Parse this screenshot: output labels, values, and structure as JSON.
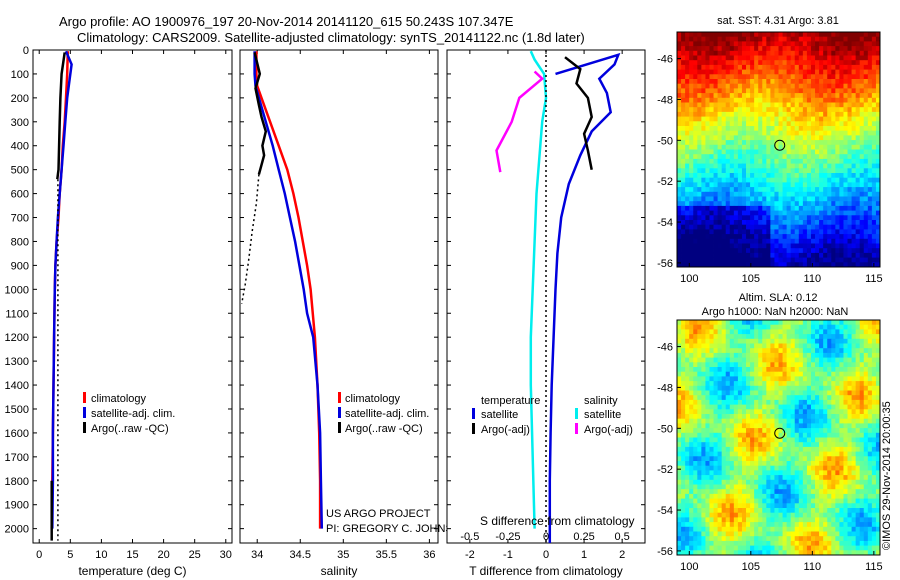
{
  "header": {
    "line1": "Argo profile: AO 1900976_197 20-Nov-2014 20141120_615 50.243S 107.347E",
    "line2": "Climatology: CARS2009. Satellite-adjusted climatology: synTS_20141122.nc (1.8d later)"
  },
  "colors": {
    "climatology": "#ff0000",
    "satellite": "#0000dd",
    "argo": "#000000",
    "satellite_s": "#00eeee",
    "argo_s": "#ff00ff"
  },
  "chart_data": [
    {
      "type": "line",
      "xlabel": "temperature (deg C)",
      "ylabel": "",
      "xlim": [
        -1,
        31
      ],
      "ylim": [
        2060,
        0
      ],
      "xticks": [
        0,
        5,
        10,
        15,
        20,
        25,
        30
      ],
      "yticks": [
        0,
        100,
        200,
        300,
        400,
        500,
        600,
        700,
        800,
        900,
        1000,
        1100,
        1200,
        1300,
        1400,
        1500,
        1600,
        1700,
        1800,
        1900,
        2000
      ],
      "legend": [
        "climatology",
        "satellite-adj. clim.",
        "Argo(..raw -QC)"
      ],
      "series": [
        {
          "name": "climatology",
          "color": "#ff0000",
          "x": [
            4.6,
            4.5,
            4.3,
            4.1,
            3.8,
            3.6,
            3.3,
            3.1,
            2.8,
            2.6,
            2.5,
            2.4,
            2.3,
            2.2,
            2.1,
            2.0
          ],
          "y": [
            5,
            100,
            200,
            300,
            400,
            500,
            600,
            700,
            800,
            900,
            1000,
            1200,
            1400,
            1600,
            1800,
            2000
          ]
        },
        {
          "name": "satellite-adj. clim.",
          "color": "#0000dd",
          "x": [
            4.3,
            5.2,
            4.9,
            4.5,
            4.2,
            3.9,
            3.6,
            3.3,
            3.0,
            2.8,
            2.6,
            2.5,
            2.4,
            2.3,
            2.2,
            2.2,
            2.1
          ],
          "y": [
            5,
            60,
            120,
            200,
            300,
            400,
            500,
            600,
            700,
            800,
            900,
            1000,
            1200,
            1400,
            1600,
            1800,
            2000
          ]
        },
        {
          "name": "Argo(..raw -QC)",
          "color": "#000000",
          "x": [
            4.1,
            3.6,
            3.4,
            3.3,
            3.2,
            3.1,
            3.0,
            2.9
          ],
          "y": [
            10,
            100,
            200,
            300,
            400,
            500,
            520,
            540
          ]
        },
        {
          "name": "",
          "color": "#000000",
          "dotted": true,
          "x": [
            3.0,
            3.0,
            3.0,
            3.0,
            3.0,
            3.0
          ],
          "y": [
            540,
            800,
            1200,
            1600,
            2000,
            2050
          ]
        },
        {
          "name": "",
          "color": "#000000",
          "x": [
            2.0,
            2.0
          ],
          "y": [
            1800,
            2050
          ]
        }
      ]
    },
    {
      "type": "line",
      "xlabel": "salinity",
      "xlim": [
        33.8,
        36.1
      ],
      "ylim": [
        2060,
        0
      ],
      "xticks": [
        34,
        34.5,
        35,
        35.5,
        36
      ],
      "legend": [
        "climatology",
        "satellite-adj. clim.",
        "Argo(..raw -QC)"
      ],
      "annotations": [
        "US ARGO PROJECT",
        "PI: GREGORY C. JOHNSON"
      ],
      "series": [
        {
          "name": "climatology",
          "color": "#ff0000",
          "x": [
            33.99,
            33.99,
            34.0,
            34.05,
            34.15,
            34.25,
            34.35,
            34.42,
            34.48,
            34.53,
            34.58,
            34.62,
            34.67,
            34.7,
            34.72,
            34.73,
            34.73
          ],
          "y": [
            5,
            100,
            150,
            200,
            300,
            400,
            500,
            600,
            700,
            800,
            900,
            1000,
            1200,
            1400,
            1600,
            1800,
            2000
          ]
        },
        {
          "name": "satellite-adj. clim.",
          "color": "#0000dd",
          "x": [
            33.97,
            33.97,
            33.98,
            34.02,
            34.1,
            34.18,
            34.25,
            34.32,
            34.38,
            34.44,
            34.49,
            34.54,
            34.58,
            34.65,
            34.7,
            34.73,
            34.74,
            34.75
          ],
          "y": [
            5,
            100,
            150,
            200,
            300,
            400,
            500,
            600,
            700,
            800,
            900,
            1000,
            1100,
            1200,
            1400,
            1600,
            1800,
            2000
          ]
        },
        {
          "name": "Argo(..raw -QC)",
          "color": "#000000",
          "x": [
            33.97,
            34.03,
            33.98,
            34.02,
            34.05,
            34.1,
            34.06,
            34.08,
            34.05,
            34.02
          ],
          "y": [
            10,
            100,
            160,
            230,
            280,
            340,
            400,
            440,
            480,
            520
          ]
        },
        {
          "name": "",
          "color": "#000000",
          "dotted": true,
          "x": [
            34.02,
            33.99,
            33.94,
            33.9,
            33.86,
            33.82
          ],
          "y": [
            520,
            640,
            760,
            880,
            980,
            1060
          ]
        }
      ]
    },
    {
      "type": "line",
      "xlabel": "T difference from climatology",
      "xlabel2": "S difference from climatology",
      "xlim": [
        -2.6,
        2.6
      ],
      "ylim": [
        2060,
        0
      ],
      "xticks": [
        -2,
        -1,
        0,
        1,
        2
      ],
      "xticks2": [
        -0.5,
        -0.25,
        0,
        0.25,
        0.5
      ],
      "legend_titles": [
        "temperature",
        "salinity"
      ],
      "legend": [
        "satellite",
        "Argo(-adj)",
        "satellite",
        "Argo(-adj)"
      ],
      "series": [
        {
          "name": "satellite",
          "color": "#0000dd",
          "x": [
            0.25,
            1.9,
            1.8,
            1.4,
            1.6,
            1.7,
            1.2,
            0.9,
            0.6,
            0.4,
            0.3,
            0.25,
            0.2,
            0.15,
            0.12,
            0.1,
            0.1,
            0.1,
            0.1
          ],
          "y": [
            100,
            20,
            60,
            120,
            180,
            260,
            340,
            440,
            560,
            700,
            850,
            1000,
            1200,
            1400,
            1600,
            1800,
            2000,
            2040,
            2060
          ]
        },
        {
          "name": "Argo(-adj)",
          "color": "#000000",
          "x": [
            0.5,
            0.9,
            0.8,
            1.1,
            1.2,
            1.0,
            1.1,
            1.2
          ],
          "y": [
            30,
            80,
            140,
            200,
            280,
            350,
            420,
            500
          ]
        },
        {
          "name": "satellite",
          "color": "#00eeee",
          "x": [
            -0.4,
            -0.3,
            -0.05,
            0.0,
            -0.1,
            -0.15,
            -0.2,
            -0.25,
            -0.3,
            -0.35,
            -0.4,
            -0.4,
            -0.35,
            -0.3
          ],
          "y": [
            5,
            40,
            100,
            200,
            300,
            400,
            500,
            600,
            800,
            1000,
            1200,
            1400,
            1700,
            2000
          ]
        },
        {
          "name": "Argo(-adj)",
          "color": "#ff00ff",
          "x": [
            -0.3,
            -0.1,
            -0.7,
            -0.9,
            -1.3,
            -1.2
          ],
          "y": [
            90,
            120,
            200,
            300,
            420,
            510
          ]
        },
        {
          "name": "",
          "color": "#000000",
          "dotted": true,
          "x": [
            0,
            0
          ],
          "y": [
            0,
            2060
          ]
        }
      ]
    },
    {
      "type": "heatmap",
      "title": "sat. SST: 4.31  Argo: 3.81",
      "xlim": [
        99,
        115.5
      ],
      "ylim": [
        -56.2,
        -44.7
      ],
      "xticks": [
        100,
        105,
        110,
        115
      ],
      "yticks": [
        -46,
        -48,
        -50,
        -52,
        -54,
        -56
      ],
      "marker": {
        "lon": 107.35,
        "lat": -50.24
      }
    },
    {
      "type": "heatmap",
      "title": "Altim. SLA: 0.12",
      "subtitle": "Argo h1000: NaN h2000: NaN",
      "side_label": "©IMOS 29-Nov-2014 20:00:35",
      "xlim": [
        99,
        115.5
      ],
      "ylim": [
        -56.2,
        -44.7
      ],
      "xticks": [
        100,
        105,
        110,
        115
      ],
      "yticks": [
        -46,
        -48,
        -50,
        -52,
        -54,
        -56
      ],
      "marker": {
        "lon": 107.35,
        "lat": -50.24
      }
    }
  ]
}
